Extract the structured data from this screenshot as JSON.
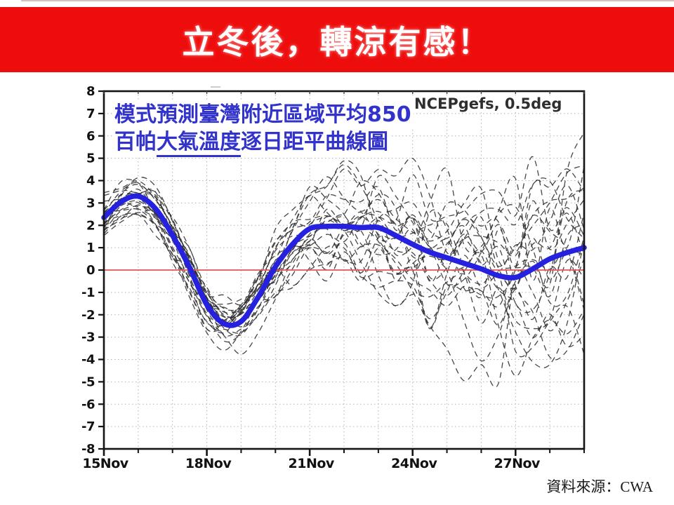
{
  "banner": {
    "title": "立冬後，轉涼有感！",
    "bg_color": "#ee0d0d",
    "text_color": "#ffffff"
  },
  "annotation": {
    "line1": "模式預測臺灣附近區域平均850",
    "line2_pre": "百帕",
    "line2_underlined": "大氣溫度",
    "line2_post": "逐日距平曲線圖",
    "color": "#3233cb"
  },
  "credit": {
    "text": "資料來源：CWA"
  },
  "chart_data": {
    "type": "line",
    "title_overlay": "模式預測臺灣附近區域平均850百帕大氣溫度逐日距平曲線圖",
    "model_label": "NCEPgefs, 0.5deg",
    "xlabel": "",
    "ylabel": "",
    "ylim": [
      -8,
      8
    ],
    "y_tick_step": 1,
    "y_tick_labels": [
      "8",
      "7",
      "6",
      "5",
      "4",
      "3",
      "2",
      "1",
      "0",
      "-1",
      "-2",
      "-3",
      "-4",
      "-5",
      "-6",
      "-7",
      "-8"
    ],
    "x_range_days": [
      0,
      14
    ],
    "x_tick_days": [
      0,
      3,
      6,
      9,
      12
    ],
    "x_tick_labels": [
      "15Nov",
      "18Nov",
      "21Nov",
      "24Nov",
      "27Nov"
    ],
    "x_minor_step_days": 1,
    "grid": true,
    "grid_color": "#b3b3b3",
    "zero_line": {
      "value": 0,
      "color": "#e25555"
    },
    "series": [
      {
        "name": "ensemble-mean",
        "color": "#2521de",
        "width": 7.5,
        "x_days": [
          0,
          0.5,
          1,
          1.5,
          2,
          2.5,
          3,
          3.5,
          4,
          4.5,
          5,
          5.5,
          6,
          6.5,
          7,
          7.5,
          8,
          8.5,
          9,
          9.5,
          10,
          10.5,
          11,
          11.5,
          12,
          12.5,
          13,
          13.5,
          14
        ],
        "values": [
          2.35,
          3.05,
          3.3,
          2.75,
          1.55,
          0.1,
          -1.55,
          -2.4,
          -2.3,
          -1.2,
          0.15,
          1.15,
          1.85,
          1.95,
          1.95,
          1.9,
          1.9,
          1.55,
          1.15,
          0.8,
          0.55,
          0.3,
          0.05,
          -0.25,
          -0.33,
          0.05,
          0.5,
          0.78,
          1.0
        ]
      }
    ],
    "ensemble": {
      "name": "ensemble-members",
      "count": 24,
      "color": "#2d2d2d",
      "width": 1.3,
      "dash": "8 6",
      "seed": 11,
      "rho": 0.75,
      "spread_by_day": [
        0.55,
        0.6,
        0.65,
        0.75,
        0.85,
        1.0,
        1.2,
        1.45,
        1.7,
        1.95,
        2.2,
        2.45,
        2.65,
        2.8,
        2.9
      ],
      "clamp": [
        -7.6,
        7.85
      ]
    }
  }
}
